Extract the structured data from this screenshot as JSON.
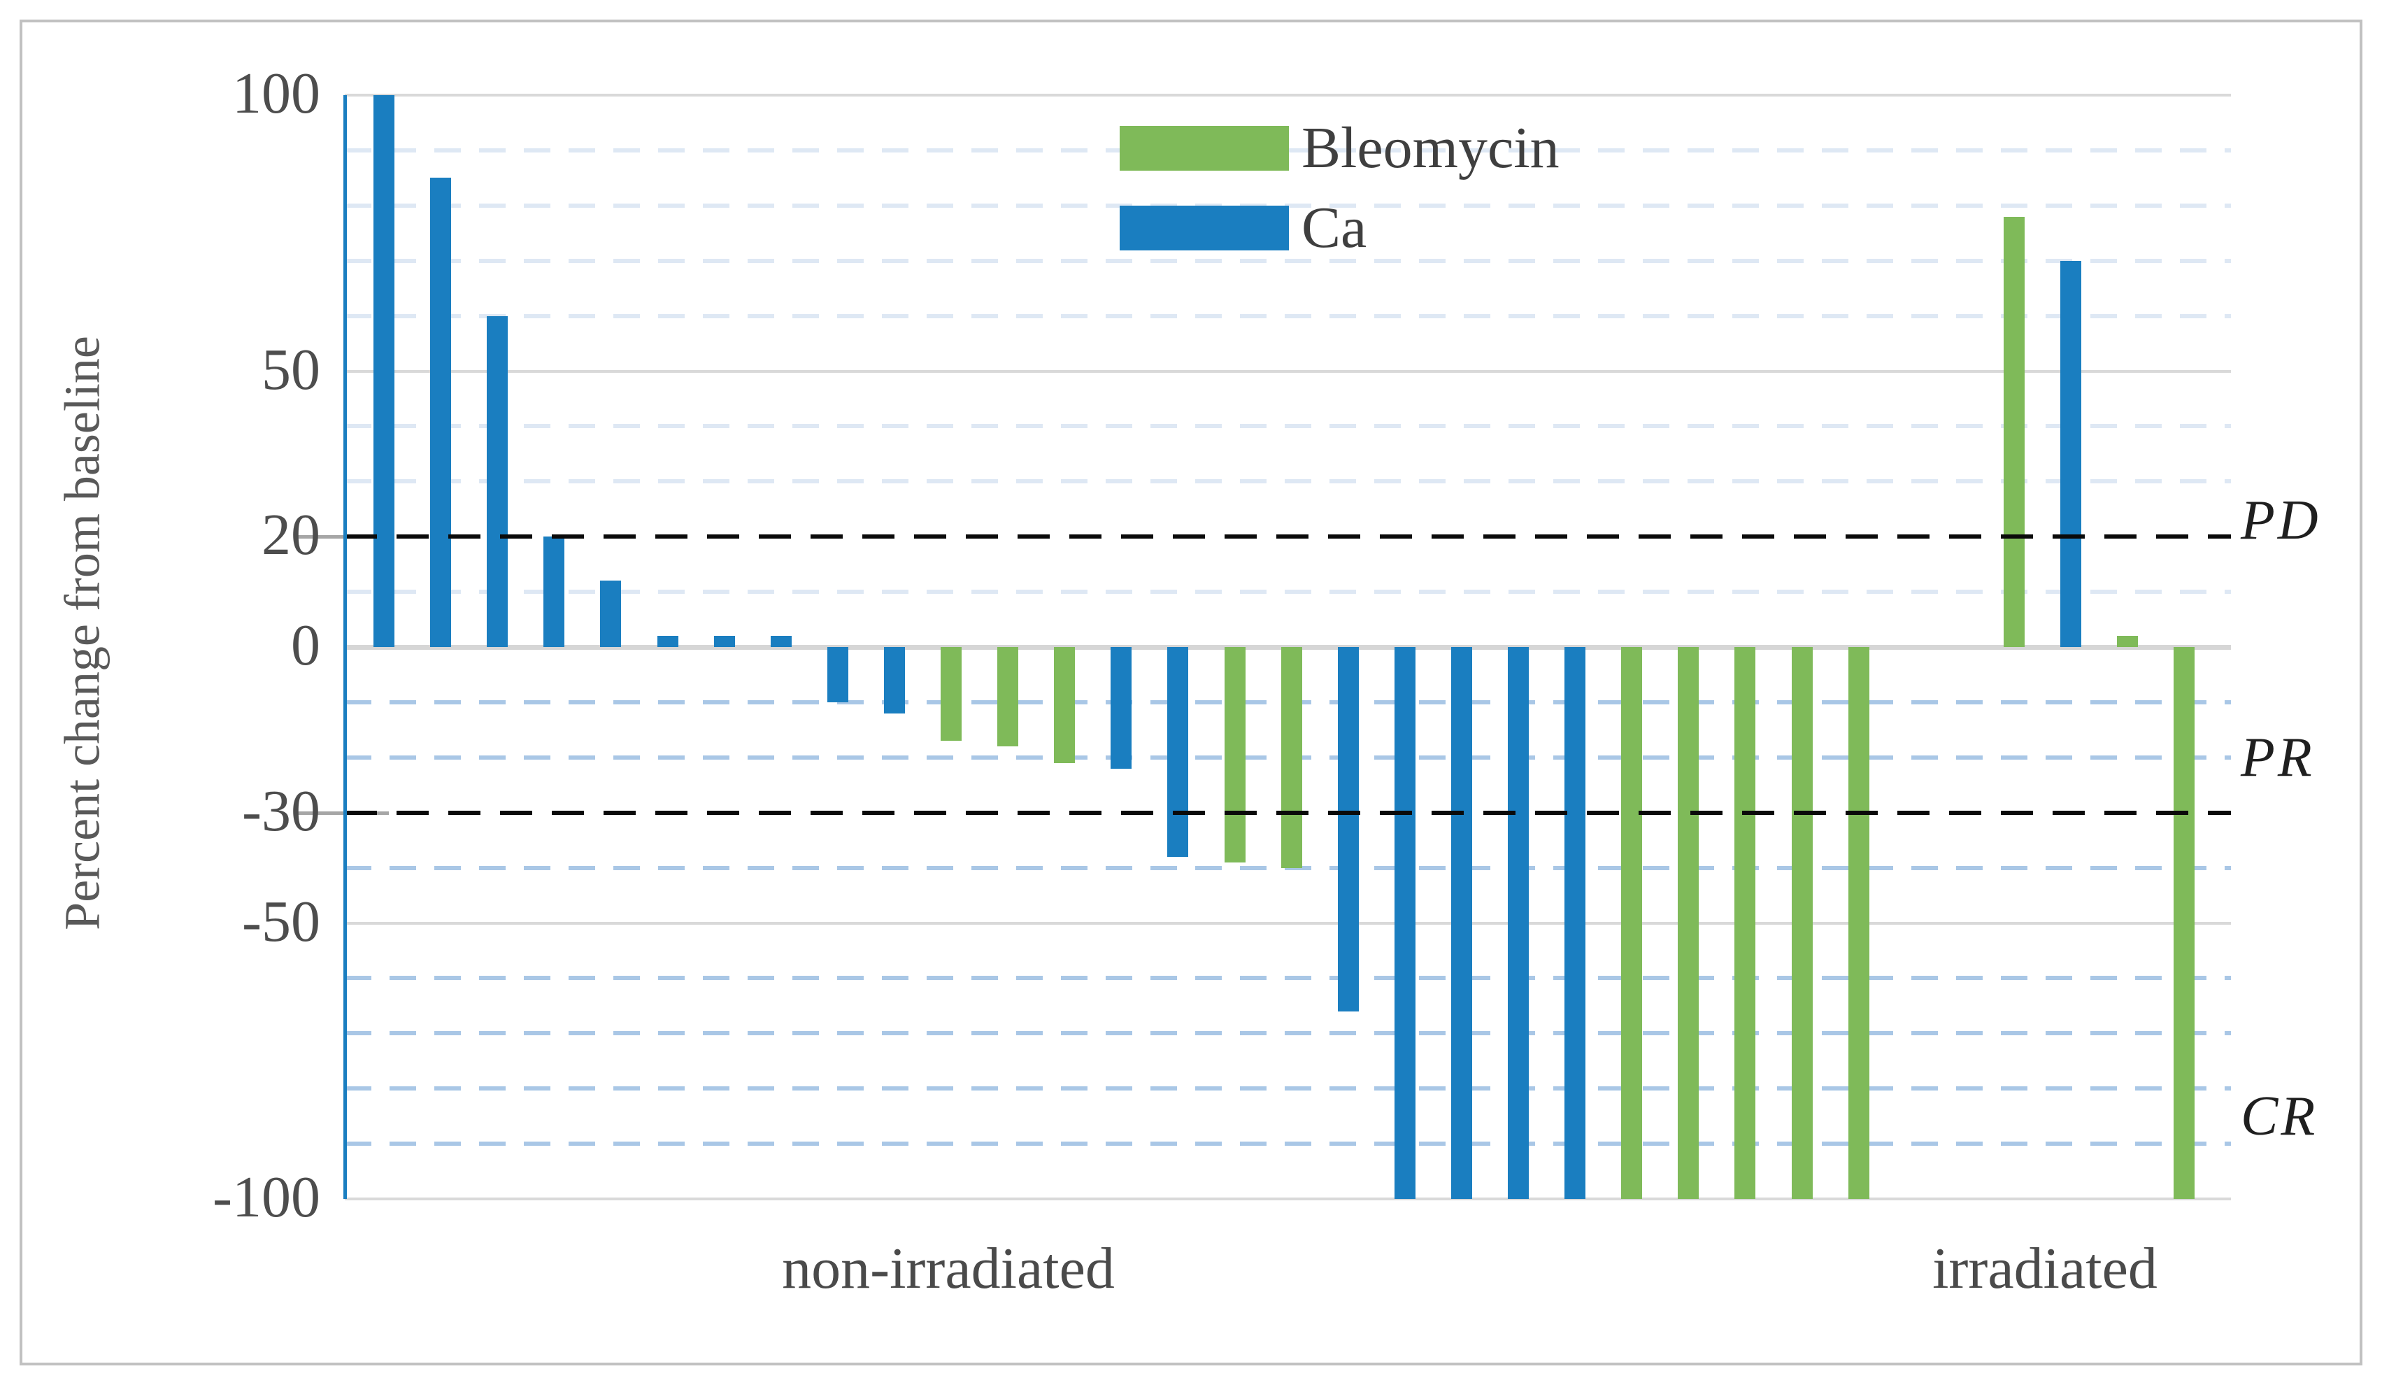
{
  "figure": {
    "background": "#FFFFFF",
    "border_color": "#C1C1C1"
  },
  "chart_data": {
    "type": "bar",
    "title": "",
    "subtitle": "",
    "xlabel": "",
    "ylabel": "Percent change from baseline",
    "ylim": [
      -100,
      100
    ],
    "yticks": [
      100,
      50,
      20,
      0,
      -30,
      -50,
      -100
    ],
    "grid": {
      "solid_levels": [
        100,
        50,
        -50,
        -100
      ],
      "zero_level": 0,
      "light_levels_above_zero": [
        90,
        80,
        70,
        60,
        40,
        30,
        10
      ],
      "light_levels_below_zero": [
        -10,
        -20,
        -40,
        -60,
        -70,
        -80,
        -90
      ],
      "threshold_levels": [
        20,
        -30
      ],
      "solid_color": "#D9D9D9",
      "zero_color": "#D6D6D6",
      "light_color_above": "#DEE8F4",
      "light_color_below": "#A9C7E6",
      "threshold_color": "#0A0A0A"
    },
    "series": [
      {
        "name": "Bleomycin",
        "color": "#7FBA59"
      },
      {
        "name": "Ca",
        "color": "#1A7EC0"
      }
    ],
    "axis_line_color": "#1A7EC0",
    "groups": [
      {
        "label": "non-irradiated",
        "bars": [
          {
            "series": "Ca",
            "value": 100
          },
          {
            "series": "Ca",
            "value": 85
          },
          {
            "series": "Ca",
            "value": 60
          },
          {
            "series": "Ca",
            "value": 20
          },
          {
            "series": "Ca",
            "value": 12
          },
          {
            "series": "Ca",
            "value": 2
          },
          {
            "series": "Ca",
            "value": 2
          },
          {
            "series": "Ca",
            "value": 2
          },
          {
            "series": "Ca",
            "value": -10
          },
          {
            "series": "Ca",
            "value": -12
          },
          {
            "series": "Bleomycin",
            "value": -17
          },
          {
            "series": "Bleomycin",
            "value": -18
          },
          {
            "series": "Bleomycin",
            "value": -21
          },
          {
            "series": "Ca",
            "value": -22
          },
          {
            "series": "Ca",
            "value": -38
          },
          {
            "series": "Bleomycin",
            "value": -39
          },
          {
            "series": "Bleomycin",
            "value": -40
          },
          {
            "series": "Ca",
            "value": -66
          },
          {
            "series": "Ca",
            "value": -100
          },
          {
            "series": "Ca",
            "value": -100
          },
          {
            "series": "Ca",
            "value": -100
          },
          {
            "series": "Ca",
            "value": -100
          },
          {
            "series": "Bleomycin",
            "value": -100
          },
          {
            "series": "Bleomycin",
            "value": -100
          },
          {
            "series": "Bleomycin",
            "value": -100
          },
          {
            "series": "Bleomycin",
            "value": -100
          },
          {
            "series": "Bleomycin",
            "value": -100
          }
        ]
      },
      {
        "label": "irradiated",
        "bars": [
          {
            "series": "Bleomycin",
            "value": 78
          },
          {
            "series": "Ca",
            "value": 70
          },
          {
            "series": "Bleomycin",
            "value": 2
          },
          {
            "series": "Bleomycin",
            "value": -100
          }
        ]
      }
    ],
    "side_labels": [
      {
        "text": "PD",
        "at": 23
      },
      {
        "text": "PR",
        "at": -20
      },
      {
        "text": "CR",
        "at": -85
      }
    ],
    "legend_position": "top-center"
  }
}
